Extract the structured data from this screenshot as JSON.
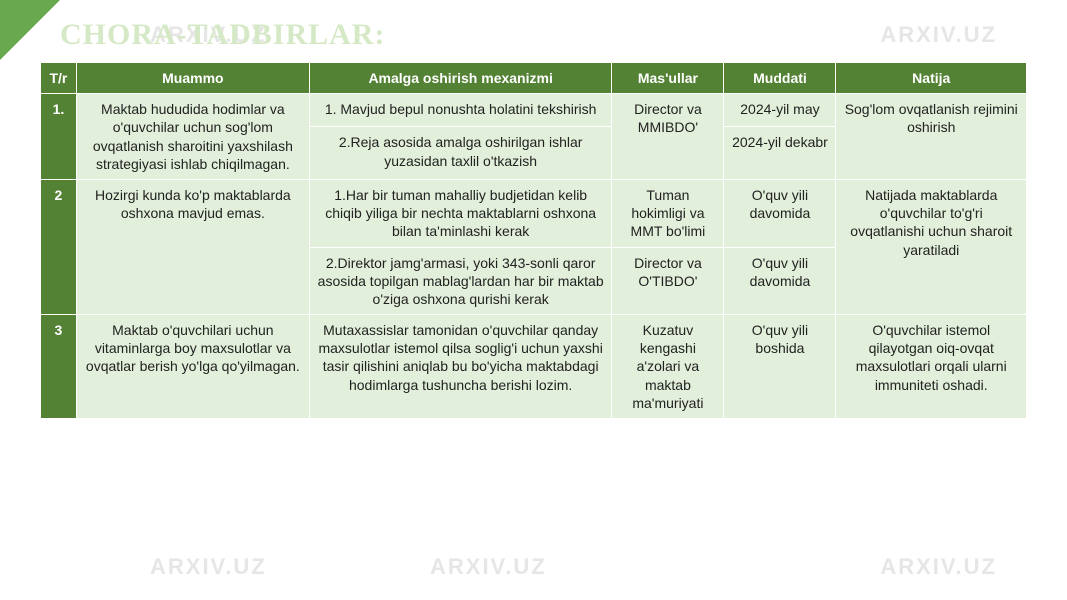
{
  "slide": {
    "title": "CHORA-TADBIRLAR:",
    "title_color": "#d6e9c6",
    "title_fontsize": 30,
    "accent_color": "#6aa84f",
    "background_color": "#ffffff",
    "watermark_text": "ARXIV.UZ",
    "watermark_color": "#e6e6e6"
  },
  "table": {
    "header_bg": "#548235",
    "header_color": "#ffffff",
    "row_bg": "#e2efda",
    "tr_col_bg": "#548235",
    "border_color": "#ffffff",
    "cell_fontsize": 14,
    "columns": [
      "T/r",
      "Muammo",
      "Amalga oshirish mexanizmi",
      "Mas'ullar",
      "Muddati",
      "Natija"
    ],
    "rows": [
      {
        "tr": "1.",
        "muammo": "Maktab hududida hodimlar va o'quvchilar uchun sog'lom ovqatlanish sharoitini yaxshilash strategiyasi ishlab chiqilmagan.",
        "mech": [
          "1. Mavjud bepul nonushta holatini tekshirish",
          "2.Reja asosida amalga oshirilgan ishlar yuzasidan taxlil o'tkazish"
        ],
        "masul": [
          "Director va MMIBDO'"
        ],
        "muddat": [
          "2024-yil may",
          "2024-yil dekabr"
        ],
        "natija": "Sog'lom ovqatlanish rejimini oshirish"
      },
      {
        "tr": "2",
        "muammo": "Hozirgi kunda ko'p maktablarda oshxona mavjud emas.",
        "mech": [
          "1.Har bir tuman mahalliy budjetidan kelib chiqib yiliga bir nechta maktablarni oshxona bilan ta'minlashi kerak",
          "2.Direktor jamg'armasi, yoki 343-sonli qaror asosida topilgan mablag'lardan har bir maktab o'ziga oshxona qurishi kerak"
        ],
        "masul": [
          "Tuman hokimligi va MMT bo'limi",
          "Director va O'TIBDO'"
        ],
        "muddat": [
          "O'quv yili davomida",
          "O'quv yili davomida"
        ],
        "natija": "Natijada maktablarda o'quvchilar to'g'ri ovqatlanishi uchun sharoit yaratiladi"
      },
      {
        "tr": "3",
        "muammo": "Maktab o'quvchilari uchun vitaminlarga boy maxsulotlar va ovqatlar berish yo'lga qo'yilmagan.",
        "mech": [
          "Mutaxassislar tamonidan o'quvchilar qanday maxsulotlar istemol qilsa soglig'i uchun yaxshi tasir qilishini aniqlab bu bo'yicha maktabdagi hodimlarga tushuncha berishi lozim."
        ],
        "masul": [
          "Kuzatuv kengashi a'zolari va maktab ma'muriyati"
        ],
        "muddat": [
          "O'quv yili boshida"
        ],
        "natija": "O'quvchilar istemol qilayotgan oiq-ovqat maxsulotlari orqali ularni immuniteti oshadi."
      }
    ]
  }
}
